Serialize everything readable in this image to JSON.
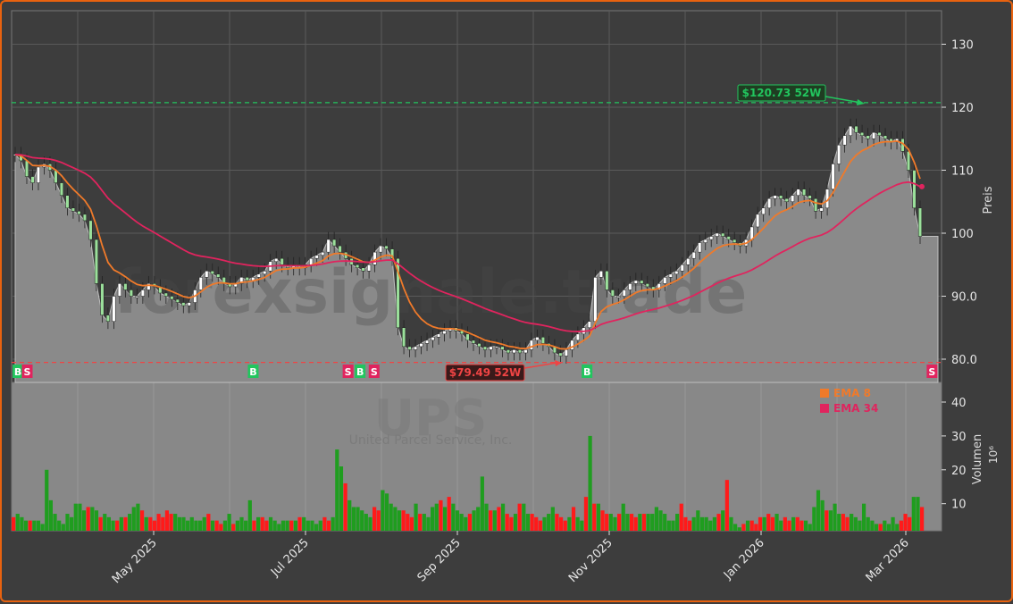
{
  "chart_data": [
    {
      "type": "candlestick",
      "title": "",
      "ticker": "UPS",
      "company": "United Parcel Service, Inc.",
      "watermark": "forexsignale.trade",
      "ylabel": "Preis",
      "ylim": [
        75,
        135
      ],
      "yticks": [
        "130",
        "120",
        "110",
        "100",
        "90.0",
        "80.0"
      ],
      "ytick_values": [
        130,
        120,
        110,
        100,
        90,
        80
      ],
      "grid": true,
      "xticks": [
        "May 2025",
        "Jul 2025",
        "Sep 2025",
        "Nov 2025",
        "Jan 2026",
        "Mar 2026"
      ],
      "high_52w": {
        "value": 120.73,
        "label": "$120.73 52W",
        "color": "#22c55e"
      },
      "low_52w": {
        "value": 79.49,
        "label": "$79.49 52W",
        "color": "#ef4444"
      },
      "close_approx": [
        112.5,
        111.5,
        109,
        108,
        110.5,
        111,
        110,
        108,
        106,
        104,
        103.5,
        103,
        102,
        99,
        92,
        87,
        86,
        90,
        92,
        91,
        90,
        90,
        91,
        92,
        91.5,
        90.5,
        90,
        89.5,
        89,
        88.5,
        89,
        91,
        93,
        94,
        93.5,
        93,
        92,
        91.5,
        92,
        93,
        92.5,
        93,
        93.5,
        94,
        95.5,
        96,
        95,
        94.5,
        95,
        94.5,
        95,
        96,
        96.5,
        97,
        99,
        98,
        97,
        96,
        95,
        94.5,
        94,
        95,
        97,
        98,
        97.5,
        96,
        85,
        82,
        81.5,
        82,
        82.5,
        83,
        83.5,
        84,
        84.5,
        85,
        84.5,
        84,
        83,
        82.5,
        82,
        81.5,
        82,
        82,
        81.5,
        81,
        81.5,
        81,
        81.5,
        83,
        83.5,
        82.5,
        82,
        81,
        80.5,
        81.5,
        83,
        84,
        85,
        86,
        93,
        94,
        91,
        90,
        90,
        91,
        92,
        92.5,
        92,
        91.5,
        91,
        92,
        93,
        93.5,
        94,
        95,
        96,
        97,
        98.5,
        99,
        99.5,
        100,
        99.5,
        99,
        98.5,
        98,
        99,
        101,
        103,
        104,
        105.5,
        106,
        105.5,
        105,
        106,
        107,
        106,
        105.5,
        103.5,
        104,
        107,
        111,
        114,
        115.5,
        117,
        116,
        115.5,
        115,
        116,
        115.5,
        115,
        114.5,
        115,
        113,
        110,
        104,
        99.5
      ],
      "ema_8": {
        "name": "EMA 8",
        "color": "#f07a2a"
      },
      "ema_34": {
        "name": "EMA 34",
        "color": "#e0245e"
      },
      "signals": [
        {
          "type": "B",
          "x": 0.002
        },
        {
          "type": "S",
          "x": 0.012
        },
        {
          "type": "B",
          "x": 0.255
        },
        {
          "type": "S",
          "x": 0.357
        },
        {
          "type": "B",
          "x": 0.37
        },
        {
          "type": "S",
          "x": 0.385
        },
        {
          "type": "B",
          "x": 0.614
        },
        {
          "type": "S",
          "x": 0.985
        }
      ]
    },
    {
      "type": "bar",
      "ylabel": "Volumen",
      "yunit": "10^6",
      "ylim": [
        2,
        45
      ],
      "yticks": [
        "40",
        "30",
        "20",
        "10"
      ],
      "ytick_values": [
        40,
        30,
        20,
        10
      ],
      "legend": [
        {
          "label": "EMA 8",
          "color": "#f07a2a"
        },
        {
          "label": "EMA 34",
          "color": "#e0245e"
        }
      ],
      "volume_approx": [
        6,
        7,
        6,
        5,
        5,
        5,
        5,
        4,
        20,
        11,
        7,
        5,
        4,
        7,
        6,
        10,
        10,
        8,
        9,
        9,
        8,
        6,
        7,
        6,
        5,
        5,
        6,
        6,
        7,
        9,
        10,
        8,
        6,
        6,
        5,
        7,
        6,
        8,
        7,
        7,
        6,
        6,
        5,
        6,
        5,
        5,
        6,
        7,
        5,
        5,
        4,
        5,
        7,
        4,
        5,
        6,
        5,
        11,
        5,
        6,
        6,
        5,
        6,
        5,
        4,
        5,
        5,
        5,
        5,
        6,
        6,
        5,
        5,
        4,
        5,
        6,
        5,
        6,
        26,
        21,
        16,
        11,
        9,
        9,
        8,
        7,
        6,
        9,
        8,
        14,
        13,
        10,
        9,
        8,
        8,
        7,
        6,
        10,
        7,
        7,
        6,
        9,
        10,
        11,
        9,
        12,
        10,
        8,
        7,
        6,
        7,
        8,
        9,
        18,
        10,
        8,
        8,
        9,
        10,
        7,
        6,
        7,
        10,
        10,
        7,
        7,
        6,
        5,
        6,
        7,
        9,
        7,
        6,
        5,
        6,
        9,
        6,
        5,
        12,
        30,
        10,
        10,
        8,
        7,
        7,
        6,
        7,
        10,
        7,
        7,
        6,
        7,
        7,
        7,
        7,
        9,
        8,
        7,
        5,
        5,
        7,
        10,
        6,
        5,
        6,
        8,
        6,
        6,
        5,
        6,
        7,
        8,
        17,
        6,
        4,
        3,
        4,
        5,
        5,
        4,
        6,
        6,
        7,
        6,
        7,
        5,
        6,
        5,
        6,
        6,
        5,
        5,
        4,
        9,
        14,
        11,
        8,
        8,
        10,
        7,
        7,
        6,
        7,
        6,
        5,
        10,
        6,
        5,
        4,
        4,
        5,
        4,
        6,
        4,
        5,
        7,
        6,
        12,
        12,
        9
      ],
      "volume_colors_up": "#1f9d1f",
      "volume_colors_down": "#ff1a1a"
    }
  ]
}
